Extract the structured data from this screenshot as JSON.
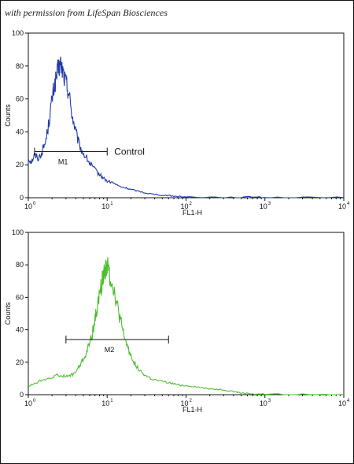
{
  "caption": "with permission from LifeSpan Biosciences",
  "chart_data": [
    {
      "type": "line",
      "color": "#1f3aa8",
      "xscale": "log",
      "xlim": [
        1,
        10000
      ],
      "ylim": [
        0,
        100
      ],
      "xlabel": "FL1-H",
      "ylabel": "Counts",
      "yticks": [
        "0",
        "20",
        "40",
        "60",
        "80",
        "100"
      ],
      "xticks": [
        {
          "base": "10",
          "exp": "0"
        },
        {
          "base": "10",
          "exp": "1"
        },
        {
          "base": "10",
          "exp": "2"
        },
        {
          "base": "10",
          "exp": "3"
        },
        {
          "base": "10",
          "exp": "4"
        }
      ],
      "series": [
        {
          "points": [
            [
              1.0,
              24
            ],
            [
              1.1,
              22
            ],
            [
              1.2,
              26
            ],
            [
              1.35,
              24
            ],
            [
              1.5,
              28
            ],
            [
              1.65,
              34
            ],
            [
              1.8,
              44
            ],
            [
              1.95,
              56
            ],
            [
              2.1,
              66
            ],
            [
              2.25,
              72
            ],
            [
              2.4,
              78
            ],
            [
              2.55,
              81
            ],
            [
              2.7,
              78
            ],
            [
              2.9,
              72
            ],
            [
              3.1,
              68
            ],
            [
              3.3,
              62
            ],
            [
              3.6,
              50
            ],
            [
              3.9,
              42
            ],
            [
              4.3,
              34
            ],
            [
              4.8,
              28
            ],
            [
              5.5,
              24
            ],
            [
              6.2,
              20
            ],
            [
              7.0,
              17
            ],
            [
              8.0,
              14
            ],
            [
              9.0,
              12
            ],
            [
              10.0,
              10
            ],
            [
              12,
              9
            ],
            [
              14,
              7
            ],
            [
              17,
              6
            ],
            [
              20,
              5
            ],
            [
              25,
              4
            ],
            [
              30,
              3
            ],
            [
              40,
              2
            ],
            [
              55,
              1.5
            ],
            [
              70,
              1
            ],
            [
              100,
              0.5
            ],
            [
              200,
              0.3
            ],
            [
              500,
              0.2
            ],
            [
              800,
              0.6
            ],
            [
              1000,
              0.2
            ],
            [
              3000,
              0.1
            ],
            [
              10000,
              0.1
            ]
          ]
        }
      ],
      "marker": {
        "label": "M1",
        "x0": 1.2,
        "x1": 10,
        "y": 28,
        "annotation": "Control"
      }
    },
    {
      "type": "line",
      "color": "#4cbf2e",
      "xscale": "log",
      "xlim": [
        1,
        10000
      ],
      "ylim": [
        0,
        100
      ],
      "xlabel": "FL1-H",
      "ylabel": "Counts",
      "yticks": [
        "0",
        "20",
        "40",
        "60",
        "80",
        "100"
      ],
      "xticks": [
        {
          "base": "10",
          "exp": "0"
        },
        {
          "base": "10",
          "exp": "1"
        },
        {
          "base": "10",
          "exp": "2"
        },
        {
          "base": "10",
          "exp": "3"
        },
        {
          "base": "10",
          "exp": "4"
        }
      ],
      "series": [
        {
          "points": [
            [
              1.0,
              5
            ],
            [
              1.2,
              7
            ],
            [
              1.5,
              9
            ],
            [
              2.0,
              11
            ],
            [
              2.5,
              12
            ],
            [
              3.0,
              11
            ],
            [
              3.5,
              12
            ],
            [
              4.0,
              14
            ],
            [
              4.5,
              18
            ],
            [
              5.0,
              22
            ],
            [
              5.5,
              26
            ],
            [
              6.0,
              32
            ],
            [
              6.5,
              38
            ],
            [
              7.0,
              46
            ],
            [
              7.5,
              54
            ],
            [
              8.0,
              62
            ],
            [
              8.5,
              68
            ],
            [
              9.0,
              74
            ],
            [
              9.5,
              78
            ],
            [
              10.0,
              80
            ],
            [
              10.5,
              76
            ],
            [
              11,
              72
            ],
            [
              12,
              66
            ],
            [
              13,
              58
            ],
            [
              14,
              50
            ],
            [
              15,
              44
            ],
            [
              16,
              38
            ],
            [
              18,
              30
            ],
            [
              20,
              24
            ],
            [
              23,
              18
            ],
            [
              27,
              14
            ],
            [
              32,
              11
            ],
            [
              40,
              9
            ],
            [
              50,
              8
            ],
            [
              65,
              7
            ],
            [
              80,
              6
            ],
            [
              100,
              5.5
            ],
            [
              130,
              5
            ],
            [
              170,
              4
            ],
            [
              220,
              3.5
            ],
            [
              300,
              3
            ],
            [
              400,
              2
            ],
            [
              500,
              1
            ],
            [
              700,
              0.5
            ],
            [
              1000,
              0.3
            ],
            [
              3000,
              0.1
            ],
            [
              10000,
              0.1
            ]
          ]
        }
      ],
      "marker": {
        "label": "M2",
        "x0": 3,
        "x1": 60,
        "y": 34
      }
    }
  ]
}
